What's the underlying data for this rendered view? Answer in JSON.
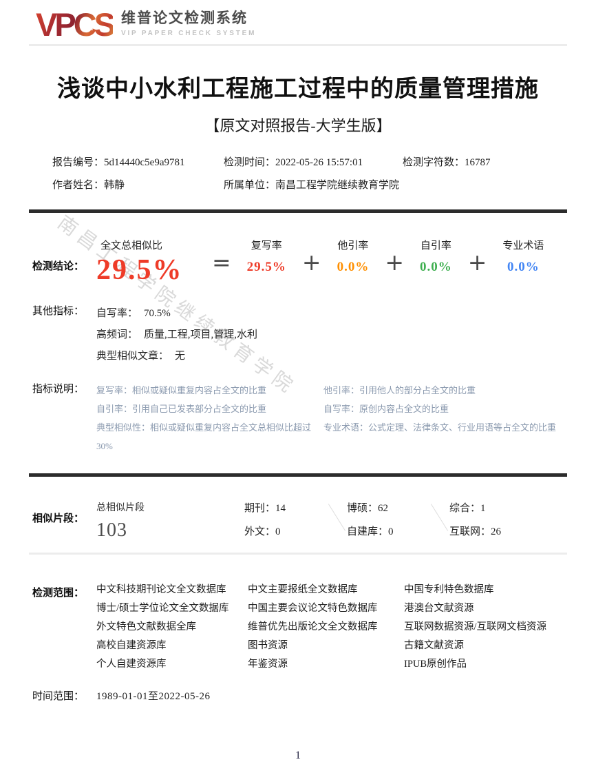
{
  "logo": {
    "acronym": "VPCS",
    "plus_glyph": "+",
    "title_cn": "维普论文检测系统",
    "title_en": "VIP PAPER CHECK SYSTEM"
  },
  "report": {
    "title": "浅谈中小水利工程施工过程中的质量管理措施",
    "subtitle": "【原文对照报告-大学生版】",
    "meta": {
      "report_no_label": "报告编号：",
      "report_no": "5d14440c5e9a9781",
      "check_time_label": "检测时间：",
      "check_time": "2022-05-26 15:57:01",
      "char_count_label": "检测字符数：",
      "char_count": "16787",
      "author_label": "作者姓名：",
      "author": "韩静",
      "org_label": "所属单位：",
      "org": "南昌工程学院继续教育学院"
    }
  },
  "conclusion": {
    "section_label": "检测结论：",
    "total": {
      "label": "全文总相似比",
      "value": "29.5%",
      "color": "#ee3b28"
    },
    "operators": {
      "equals": "=",
      "plus": "+"
    },
    "metrics": [
      {
        "label": "复写率",
        "value": "29.5%",
        "color": "#ee3b28"
      },
      {
        "label": "他引率",
        "value": "0.0%",
        "color": "#ff8f00"
      },
      {
        "label": "自引率",
        "value": "0.0%",
        "color": "#3faf50"
      },
      {
        "label": "专业术语",
        "value": "0.0%",
        "color": "#4285f4"
      }
    ]
  },
  "other_metrics": {
    "section_label": "其他指标：",
    "rows": [
      {
        "label": "自写率：",
        "value": "70.5%"
      },
      {
        "label": "高频词：",
        "value": "质量,工程,项目,管理,水利"
      },
      {
        "label": "典型相似文章：",
        "value": "无"
      }
    ]
  },
  "indicator_notes": {
    "section_label": "指标说明：",
    "left": [
      "复写率：相似或疑似重复内容占全文的比重",
      "自引率：引用自己已发表部分占全文的比重",
      "典型相似性：相似或疑似重复内容占全文总相似比超过30%"
    ],
    "right": [
      "他引率：引用他人的部分占全文的比重",
      "自写率：原创内容占全文的比重",
      "专业术语：公式定理、法律条文、行业用语等占全文的比重"
    ]
  },
  "similar_fragments": {
    "section_label": "相似片段：",
    "total_label": "总相似片段",
    "total_value": "103",
    "columns": [
      {
        "rows": [
          {
            "label": "期刊：",
            "value": "14"
          },
          {
            "label": "外文：",
            "value": "0"
          }
        ]
      },
      {
        "rows": [
          {
            "label": "博硕：",
            "value": "62"
          },
          {
            "label": "自建库：",
            "value": "0"
          }
        ]
      },
      {
        "rows": [
          {
            "label": "综合：",
            "value": "1"
          },
          {
            "label": "互联网：",
            "value": "26"
          }
        ]
      }
    ]
  },
  "scope": {
    "section_label": "检测范围：",
    "columns": [
      [
        "中文科技期刊论文全文数据库",
        "博士/硕士学位论文全文数据库",
        "外文特色文献数据全库",
        "高校自建资源库",
        "个人自建资源库"
      ],
      [
        "中文主要报纸全文数据库",
        "中国主要会议论文特色数据库",
        "维普优先出版论文全文数据库",
        "图书资源",
        "年鉴资源"
      ],
      [
        "中国专利特色数据库",
        "港澳台文献资源",
        "互联网数据资源/互联网文档资源",
        "古籍文献资源",
        "IPUB原创作品"
      ]
    ]
  },
  "time_range": {
    "label": "时间范围：",
    "value": "1989-01-01至2022-05-26"
  },
  "watermark": "南昌工程学院继续教育学院",
  "footer": {
    "page_number": "1"
  }
}
